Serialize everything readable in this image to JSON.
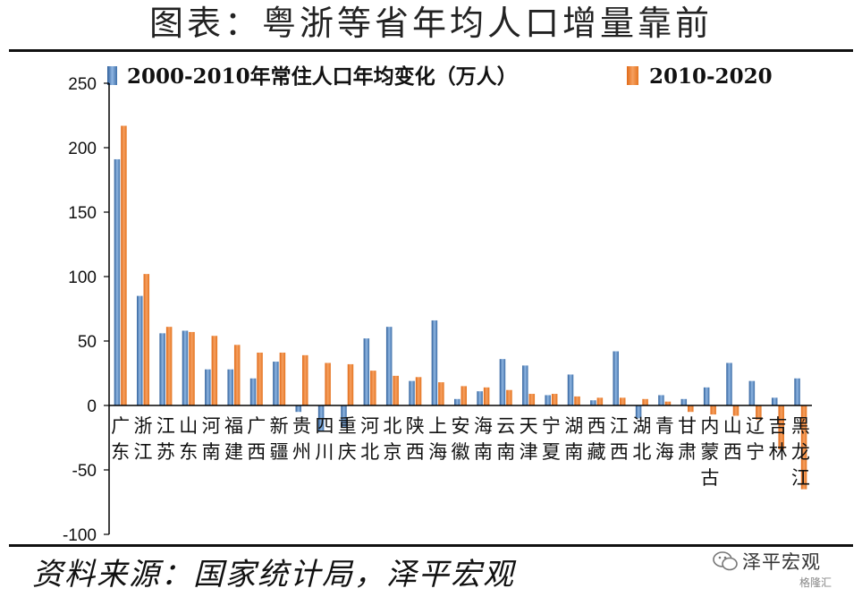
{
  "header": {
    "title": "图表：粤浙等省年均人口增量靠前"
  },
  "footer": {
    "source": "资料来源：国家统计局，泽平宏观"
  },
  "watermark": {
    "name": "泽平宏观",
    "sub": "格隆汇"
  },
  "colors": {
    "series1": "#4f81bd",
    "series2": "#f0802a",
    "axis": "#000000"
  },
  "chart_data": {
    "type": "bar",
    "ylim": [
      -100,
      250
    ],
    "yticks": [
      -100,
      -50,
      0,
      50,
      100,
      150,
      200,
      250
    ],
    "legend_position": "top",
    "grid": false,
    "categories": [
      "广东",
      "浙江",
      "江苏",
      "山东",
      "河南",
      "福建",
      "广西",
      "新疆",
      "贵州",
      "四川",
      "重庆",
      "河北",
      "北京",
      "陕西",
      "上海",
      "安徽",
      "海南",
      "云南",
      "天津",
      "宁夏",
      "湖南",
      "西藏",
      "江西",
      "湖北",
      "青海",
      "甘肃",
      "内蒙古",
      "山西",
      "辽宁",
      "吉林",
      "黑龙江"
    ],
    "series": [
      {
        "name": "2000-2010年常住人口年均变化（万人）",
        "values": [
          191,
          85,
          56,
          58,
          28,
          28,
          21,
          34,
          -5,
          -20,
          -17,
          52,
          61,
          19,
          66,
          5,
          11,
          36,
          31,
          8,
          24,
          4,
          42,
          -10,
          8,
          5,
          14,
          33,
          19,
          6,
          21
        ]
      },
      {
        "name": "2010-2020",
        "values": [
          217,
          102,
          61,
          57,
          54,
          47,
          41,
          41,
          39,
          33,
          32,
          27,
          23,
          22,
          18,
          15,
          14,
          12,
          9,
          9,
          7,
          6,
          6,
          5,
          3,
          -5,
          -7,
          -8,
          -11,
          -34,
          -65
        ]
      }
    ]
  }
}
